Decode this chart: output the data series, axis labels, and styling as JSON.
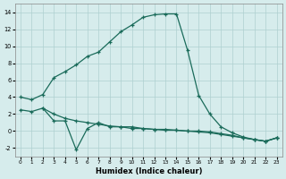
{
  "xlabel": "Humidex (Indice chaleur)",
  "background_color": "#d6ecec",
  "grid_color": "#aed0d0",
  "line_color": "#1a6b5a",
  "xlim": [
    -0.5,
    23.5
  ],
  "ylim": [
    -3.0,
    15.0
  ],
  "yticks": [
    -2,
    0,
    2,
    4,
    6,
    8,
    10,
    12,
    14
  ],
  "xticks": [
    0,
    1,
    2,
    3,
    4,
    5,
    6,
    7,
    8,
    9,
    10,
    11,
    12,
    13,
    14,
    15,
    16,
    17,
    18,
    19,
    20,
    21,
    22,
    23
  ],
  "curve1_x": [
    0,
    1,
    2,
    3,
    4,
    5,
    6,
    7,
    8,
    9,
    10,
    11,
    12,
    13,
    14,
    15,
    16,
    17,
    18,
    19,
    20,
    21,
    22,
    23
  ],
  "curve1_y": [
    4.0,
    3.7,
    4.3,
    6.3,
    7.0,
    7.8,
    8.8,
    9.3,
    10.5,
    11.7,
    12.5,
    13.4,
    13.7,
    13.8,
    13.8,
    9.5,
    4.2,
    2.0,
    0.5,
    -0.2,
    -0.7,
    -1.0,
    -1.2,
    -0.8
  ],
  "curve2_x": [
    2,
    3,
    4,
    5,
    6,
    7,
    8,
    9,
    10,
    11,
    12,
    13,
    14,
    15,
    16,
    17,
    18,
    19,
    20,
    21,
    22,
    23
  ],
  "curve2_y": [
    2.7,
    1.2,
    1.2,
    -2.2,
    0.3,
    1.0,
    0.5,
    0.5,
    0.5,
    0.3,
    0.2,
    0.2,
    0.1,
    0.0,
    0.0,
    -0.1,
    -0.3,
    -0.5,
    -0.8,
    -1.0,
    -1.2,
    -0.8
  ],
  "curve3_x": [
    0,
    1,
    2,
    3,
    4,
    5,
    6,
    7,
    8,
    9,
    10,
    11,
    12,
    13,
    14,
    15,
    16,
    17,
    18,
    19,
    20,
    21,
    22,
    23
  ],
  "curve3_y": [
    2.5,
    2.3,
    2.7,
    2.0,
    1.5,
    1.2,
    1.0,
    0.8,
    0.6,
    0.5,
    0.3,
    0.3,
    0.2,
    0.1,
    0.1,
    0.0,
    -0.1,
    -0.2,
    -0.4,
    -0.6,
    -0.8,
    -1.0,
    -1.2,
    -0.8
  ]
}
